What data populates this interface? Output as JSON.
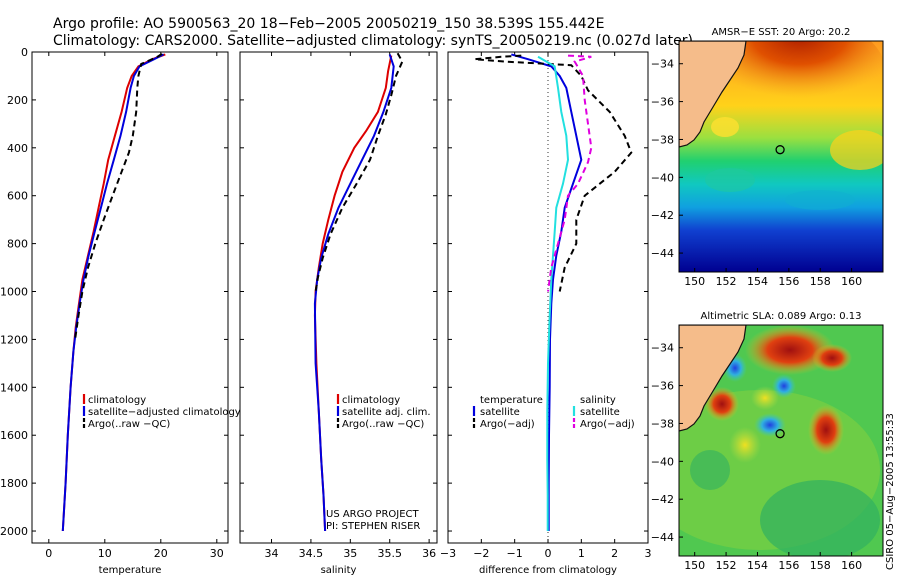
{
  "header": {
    "line1": "Argo profile: AO 5900563_20 18−Feb−2005 20050219_150 38.539S 155.442E",
    "line2": "Climatology: CARS2000. Satellite−adjusted climatology: synTS_20050219.nc (0.027d later)"
  },
  "credits": {
    "project": "US ARGO PROJECT",
    "pi": "PI: STEPHEN RISER",
    "side": "CSIRO 05−Aug−2005 13:55:33"
  },
  "colors": {
    "climatology": "#dd0000",
    "satellite": "#0000dd",
    "argo": "#000000",
    "sal_satellite": "#22e0e0",
    "sal_argo": "#e000e0",
    "land": "#f5bc8a",
    "coast": "#111111"
  },
  "chart_data": [
    {
      "type": "line",
      "id": "temperature",
      "xlabel": "temperature",
      "xlim": [
        -3,
        32
      ],
      "ylim": [
        2050,
        0
      ],
      "xticks": [
        0,
        10,
        20,
        30
      ],
      "yticks": [
        0,
        200,
        400,
        600,
        800,
        1000,
        1200,
        1400,
        1600,
        1800,
        2000
      ],
      "legend": [
        "climatology",
        "satellite−adjusted climatology",
        "Argo(..raw −QC)"
      ],
      "series": [
        {
          "name": "climatology",
          "color": "#dd0000",
          "dash": "",
          "points": [
            [
              20.8,
              10
            ],
            [
              18.5,
              30
            ],
            [
              16.0,
              60
            ],
            [
              14.8,
              100
            ],
            [
              14.0,
              150
            ],
            [
              13.0,
              250
            ],
            [
              11.8,
              350
            ],
            [
              10.6,
              450
            ],
            [
              9.8,
              550
            ],
            [
              8.9,
              650
            ],
            [
              8.0,
              750
            ],
            [
              7.0,
              850
            ],
            [
              6.0,
              950
            ],
            [
              5.4,
              1050
            ],
            [
              4.8,
              1150
            ],
            [
              4.4,
              1250
            ],
            [
              3.9,
              1400
            ],
            [
              3.4,
              1600
            ],
            [
              3.0,
              1800
            ],
            [
              2.5,
              2000
            ]
          ]
        },
        {
          "name": "satellite−adjusted climatology",
          "color": "#0000dd",
          "dash": "",
          "points": [
            [
              20.5,
              10
            ],
            [
              18.8,
              30
            ],
            [
              16.2,
              60
            ],
            [
              15.2,
              100
            ],
            [
              14.6,
              150
            ],
            [
              13.8,
              250
            ],
            [
              12.8,
              350
            ],
            [
              11.6,
              450
            ],
            [
              10.4,
              550
            ],
            [
              9.3,
              650
            ],
            [
              8.2,
              750
            ],
            [
              7.1,
              850
            ],
            [
              6.2,
              950
            ],
            [
              5.5,
              1050
            ],
            [
              4.9,
              1150
            ],
            [
              4.4,
              1250
            ],
            [
              3.9,
              1400
            ],
            [
              3.4,
              1600
            ],
            [
              3.0,
              1800
            ],
            [
              2.5,
              2000
            ]
          ]
        },
        {
          "name": "Argo(..raw −QC)",
          "color": "#000000",
          "dash": "6,4",
          "points": [
            [
              20.2,
              8
            ],
            [
              19.4,
              20
            ],
            [
              16.5,
              50
            ],
            [
              16.0,
              100
            ],
            [
              15.8,
              150
            ],
            [
              15.6,
              250
            ],
            [
              15.0,
              350
            ],
            [
              14.3,
              420
            ],
            [
              13.0,
              500
            ],
            [
              11.4,
              600
            ],
            [
              9.8,
              700
            ],
            [
              8.3,
              800
            ],
            [
              7.0,
              900
            ],
            [
              6.0,
              1000
            ],
            [
              5.3,
              1100
            ],
            [
              4.7,
              1200
            ]
          ]
        }
      ]
    },
    {
      "type": "line",
      "id": "salinity",
      "xlabel": "salinity",
      "xlim": [
        33.6,
        36.1
      ],
      "ylim": [
        2050,
        0
      ],
      "xticks": [
        34,
        34.5,
        35,
        35.5,
        36
      ],
      "legend": [
        "climatology",
        "satellite adj. clim.",
        "Argo(..raw −QC)"
      ],
      "series": [
        {
          "name": "climatology",
          "color": "#dd0000",
          "dash": "",
          "points": [
            [
              35.52,
              15
            ],
            [
              35.48,
              80
            ],
            [
              35.45,
              150
            ],
            [
              35.35,
              250
            ],
            [
              35.2,
              330
            ],
            [
              35.05,
              400
            ],
            [
              34.9,
              500
            ],
            [
              34.8,
              600
            ],
            [
              34.72,
              700
            ],
            [
              34.65,
              800
            ],
            [
              34.6,
              900
            ],
            [
              34.56,
              1000
            ],
            [
              34.55,
              1100
            ],
            [
              34.57,
              1300
            ],
            [
              34.6,
              1500
            ],
            [
              34.63,
              1700
            ],
            [
              34.66,
              1850
            ],
            [
              34.68,
              2000
            ]
          ]
        },
        {
          "name": "satellite adj. clim.",
          "color": "#0000dd",
          "dash": "",
          "points": [
            [
              35.5,
              10
            ],
            [
              35.55,
              60
            ],
            [
              35.52,
              150
            ],
            [
              35.42,
              250
            ],
            [
              35.3,
              350
            ],
            [
              35.15,
              450
            ],
            [
              35.0,
              550
            ],
            [
              34.85,
              650
            ],
            [
              34.72,
              760
            ],
            [
              34.63,
              860
            ],
            [
              34.58,
              950
            ],
            [
              34.55,
              1050
            ],
            [
              34.56,
              1300
            ],
            [
              34.6,
              1500
            ],
            [
              34.63,
              1700
            ],
            [
              34.66,
              1850
            ],
            [
              34.68,
              2000
            ]
          ]
        },
        {
          "name": "Argo(..raw −QC)",
          "color": "#000000",
          "dash": "6,4",
          "points": [
            [
              35.6,
              5
            ],
            [
              35.66,
              40
            ],
            [
              35.58,
              100
            ],
            [
              35.52,
              180
            ],
            [
              35.45,
              260
            ],
            [
              35.35,
              350
            ],
            [
              35.25,
              450
            ],
            [
              35.08,
              550
            ],
            [
              34.9,
              650
            ],
            [
              34.75,
              760
            ],
            [
              34.65,
              860
            ],
            [
              34.59,
              940
            ],
            [
              34.56,
              1000
            ]
          ]
        }
      ]
    },
    {
      "type": "line",
      "id": "difference",
      "xlabel": "difference from climatology",
      "xlim": [
        -3,
        3
      ],
      "ylim": [
        2050,
        0
      ],
      "xticks": [
        -3,
        -2,
        -1,
        0,
        1,
        2,
        3
      ],
      "legend_temperature_title": "temperature",
      "legend_salinity_title": "salinity",
      "legend_temperature": [
        "satellite",
        "Argo(−adj)"
      ],
      "legend_salinity": [
        "satellite",
        "Argo(−adj)"
      ],
      "series": [
        {
          "name": "temperature satellite",
          "color": "#0000dd",
          "dash": "",
          "points": [
            [
              -1.1,
              10
            ],
            [
              -0.6,
              30
            ],
            [
              0.1,
              60
            ],
            [
              0.35,
              100
            ],
            [
              0.55,
              150
            ],
            [
              0.7,
              250
            ],
            [
              0.85,
              350
            ],
            [
              1.0,
              450
            ],
            [
              0.75,
              550
            ],
            [
              0.5,
              650
            ],
            [
              0.4,
              750
            ],
            [
              0.25,
              850
            ],
            [
              0.15,
              950
            ],
            [
              0.1,
              1050
            ],
            [
              0.06,
              1200
            ],
            [
              0.05,
              1400
            ],
            [
              0.03,
              1600
            ],
            [
              0.02,
              1800
            ],
            [
              0.02,
              2000
            ]
          ]
        },
        {
          "name": "temperature Argo(−adj)",
          "color": "#000000",
          "dash": "6,4",
          "points": [
            [
              -0.8,
              15
            ],
            [
              -1.4,
              20
            ],
            [
              -2.2,
              30
            ],
            [
              -1.3,
              40
            ],
            [
              0.7,
              55
            ],
            [
              1.0,
              100
            ],
            [
              1.2,
              160
            ],
            [
              1.85,
              250
            ],
            [
              2.3,
              350
            ],
            [
              2.5,
              420
            ],
            [
              2.0,
              500
            ],
            [
              1.1,
              600
            ],
            [
              0.85,
              700
            ],
            [
              0.85,
              800
            ],
            [
              0.5,
              900
            ],
            [
              0.35,
              1000
            ]
          ]
        },
        {
          "name": "salinity satellite",
          "color": "#22e0e0",
          "dash": "",
          "points": [
            [
              -0.3,
              20
            ],
            [
              0.2,
              60
            ],
            [
              0.3,
              150
            ],
            [
              0.4,
              250
            ],
            [
              0.55,
              350
            ],
            [
              0.6,
              450
            ],
            [
              0.45,
              550
            ],
            [
              0.25,
              650
            ],
            [
              0.2,
              750
            ],
            [
              0.15,
              850
            ],
            [
              0.1,
              950
            ],
            [
              0.05,
              1100
            ],
            [
              0.0,
              1300
            ],
            [
              -0.02,
              1500
            ],
            [
              -0.02,
              1700
            ],
            [
              -0.01,
              1850
            ],
            [
              -0.01,
              2000
            ]
          ]
        },
        {
          "name": "salinity Argo(−adj)",
          "color": "#e000e0",
          "dash": "6,4",
          "points": [
            [
              0.6,
              15
            ],
            [
              1.3,
              20
            ],
            [
              0.8,
              40
            ],
            [
              1.05,
              100
            ],
            [
              1.1,
              200
            ],
            [
              1.2,
              300
            ],
            [
              1.3,
              400
            ],
            [
              1.2,
              460
            ],
            [
              0.9,
              550
            ],
            [
              0.6,
              600
            ],
            [
              0.5,
              700
            ],
            [
              0.3,
              800
            ],
            [
              0.1,
              900
            ],
            [
              0.0,
              1000
            ]
          ]
        }
      ]
    },
    {
      "type": "heatmap",
      "id": "sst_map",
      "title": "AMSR−E SST: 20 Argo: 20.2",
      "xlim": [
        149,
        162
      ],
      "ylim": [
        -45,
        -32.8
      ],
      "xticks": [
        150,
        152,
        154,
        156,
        158,
        160
      ],
      "yticks": [
        -34,
        -36,
        -38,
        -40,
        -42,
        -44
      ],
      "float_position": {
        "lon": 155.442,
        "lat": -38.539
      }
    },
    {
      "type": "heatmap",
      "id": "sla_map",
      "title": "Altimetric SLA: 0.089 Argo: 0.13",
      "xlim": [
        149,
        162
      ],
      "ylim": [
        -45,
        -32.8
      ],
      "xticks": [
        150,
        152,
        154,
        156,
        158,
        160
      ],
      "yticks": [
        -34,
        -36,
        -38,
        -40,
        -42,
        -44
      ],
      "float_position": {
        "lon": 155.442,
        "lat": -38.539
      }
    }
  ]
}
